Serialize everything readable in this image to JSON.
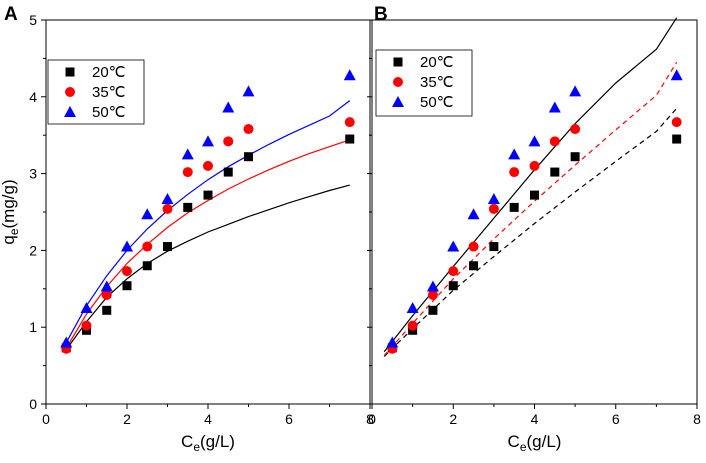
{
  "chart_data": [
    {
      "type": "scatter",
      "panel_label": "A",
      "xlabel_main": "C",
      "xlabel_sub": "e",
      "xlabel_unit": "(g/L)",
      "ylabel_main": "q",
      "ylabel_sub": "e",
      "ylabel_unit": "(mg/g)",
      "xlim": [
        0,
        8
      ],
      "ylim": [
        0,
        5
      ],
      "xticks": [
        0,
        2,
        4,
        6,
        8
      ],
      "yticks": [
        0,
        1,
        2,
        3,
        4,
        5
      ],
      "legend_position": "top-left",
      "series": [
        {
          "name": "20℃",
          "color": "#000000",
          "marker": "square",
          "fit_style": "solid",
          "x": [
            0.5,
            1.0,
            1.5,
            2.0,
            2.5,
            3.0,
            3.5,
            4.0,
            4.5,
            5.0,
            7.5
          ],
          "y": [
            0.73,
            0.96,
            1.22,
            1.54,
            1.8,
            2.05,
            2.56,
            2.72,
            3.02,
            3.22,
            3.45
          ],
          "fit_x": [
            0.5,
            1.0,
            1.5,
            2.0,
            2.5,
            3.0,
            3.5,
            4.0,
            4.5,
            5.0,
            5.5,
            6.0,
            6.5,
            7.0,
            7.5
          ],
          "fit_y": [
            0.71,
            1.07,
            1.39,
            1.63,
            1.83,
            1.99,
            2.12,
            2.24,
            2.34,
            2.44,
            2.53,
            2.62,
            2.7,
            2.78,
            2.85
          ]
        },
        {
          "name": "35℃",
          "color": "#ff0000",
          "marker": "circle",
          "fit_style": "solid",
          "x": [
            0.5,
            1.0,
            1.5,
            2.0,
            2.5,
            3.0,
            3.5,
            4.0,
            4.5,
            5.0,
            7.5
          ],
          "y": [
            0.72,
            1.02,
            1.42,
            1.73,
            2.05,
            2.54,
            3.02,
            3.1,
            3.42,
            3.58,
            3.67
          ],
          "fit_x": [
            0.5,
            1.0,
            1.5,
            2.0,
            2.5,
            3.0,
            3.5,
            4.0,
            4.5,
            5.0,
            5.5,
            6.0,
            6.5,
            7.0,
            7.5
          ],
          "fit_y": [
            0.73,
            1.17,
            1.53,
            1.83,
            2.08,
            2.3,
            2.49,
            2.65,
            2.8,
            2.93,
            3.05,
            3.16,
            3.26,
            3.35,
            3.44
          ]
        },
        {
          "name": "50℃",
          "color": "#0000ff",
          "marker": "triangle",
          "fit_style": "solid",
          "x": [
            0.5,
            1.0,
            1.5,
            2.0,
            2.5,
            3.0,
            3.5,
            4.0,
            4.5,
            5.0,
            7.5
          ],
          "y": [
            0.8,
            1.25,
            1.53,
            2.05,
            2.47,
            2.67,
            3.25,
            3.42,
            3.86,
            4.07,
            4.28
          ],
          "fit_x": [
            0.5,
            1.0,
            1.5,
            2.0,
            2.5,
            3.0,
            3.5,
            4.0,
            4.5,
            5.0,
            5.5,
            6.0,
            6.5,
            7.0,
            7.5
          ],
          "fit_y": [
            0.8,
            1.28,
            1.67,
            2.0,
            2.28,
            2.52,
            2.73,
            2.92,
            3.09,
            3.24,
            3.38,
            3.51,
            3.63,
            3.75,
            3.95
          ]
        }
      ]
    },
    {
      "type": "scatter",
      "panel_label": "B",
      "xlabel_main": "C",
      "xlabel_sub": "e",
      "xlabel_unit": "(g/L)",
      "ylabel_main": "q",
      "ylabel_sub": "e",
      "ylabel_unit": "(mg/g)",
      "xlim": [
        0,
        8
      ],
      "ylim": [
        0,
        5
      ],
      "xticks": [
        0,
        2,
        4,
        6,
        8
      ],
      "yticks": [
        0,
        1,
        2,
        3,
        4,
        5
      ],
      "legend_position": "top-left",
      "series": [
        {
          "name": "20℃",
          "color": "#000000",
          "marker": "square",
          "fit_style": "dashed",
          "x": [
            0.5,
            1.0,
            1.5,
            2.0,
            2.5,
            3.0,
            3.5,
            4.0,
            4.5,
            5.0,
            7.5
          ],
          "y": [
            0.73,
            0.96,
            1.22,
            1.54,
            1.8,
            2.05,
            2.56,
            2.72,
            3.02,
            3.22,
            3.45
          ],
          "fit_x": [
            0.3,
            1.0,
            2.0,
            3.0,
            4.0,
            5.0,
            6.0,
            7.0,
            7.5
          ],
          "fit_y": [
            0.62,
            0.98,
            1.48,
            1.92,
            2.35,
            2.76,
            3.16,
            3.55,
            3.85
          ]
        },
        {
          "name": "35℃",
          "color": "#ff0000",
          "marker": "circle",
          "fit_style": "dashed",
          "x": [
            0.5,
            1.0,
            1.5,
            2.0,
            2.5,
            3.0,
            3.5,
            4.0,
            4.5,
            5.0,
            7.5
          ],
          "y": [
            0.72,
            1.02,
            1.42,
            1.73,
            2.05,
            2.54,
            3.02,
            3.1,
            3.42,
            3.58,
            3.67
          ],
          "fit_x": [
            0.3,
            1.0,
            2.0,
            3.0,
            4.0,
            5.0,
            6.0,
            7.0,
            7.5
          ],
          "fit_y": [
            0.63,
            1.05,
            1.63,
            2.15,
            2.64,
            3.11,
            3.57,
            4.02,
            4.45
          ]
        },
        {
          "name": "50℃",
          "color": "#0000ff",
          "marker": "triangle",
          "fit_style": "solid-black",
          "x": [
            0.5,
            1.0,
            1.5,
            2.0,
            2.5,
            3.0,
            3.5,
            4.0,
            4.5,
            5.0,
            7.5
          ],
          "y": [
            0.8,
            1.25,
            1.53,
            2.05,
            2.47,
            2.67,
            3.25,
            3.42,
            3.86,
            4.07,
            4.28
          ],
          "fit_x": [
            0.3,
            1.0,
            2.0,
            3.0,
            4.0,
            5.0,
            6.0,
            7.0,
            7.5
          ],
          "fit_y": [
            0.68,
            1.15,
            1.79,
            2.42,
            3.05,
            3.65,
            4.18,
            4.62,
            5.03
          ]
        }
      ]
    }
  ]
}
